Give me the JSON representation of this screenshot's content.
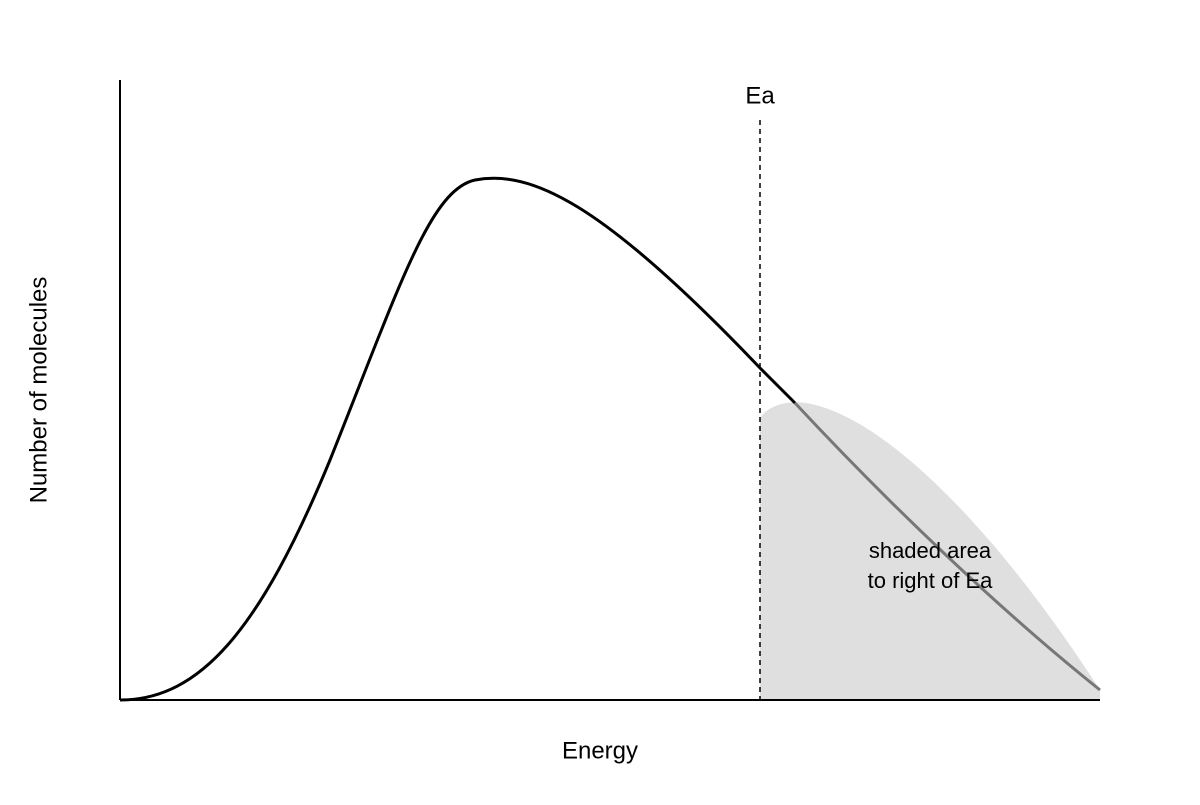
{
  "diagram": {
    "threshold_label": "Ea",
    "x_axis_label": "Energy",
    "y_axis_label": "Number of molecules",
    "annotation": {
      "lines": [
        "shaded area",
        "to right of Ea"
      ]
    }
  }
}
